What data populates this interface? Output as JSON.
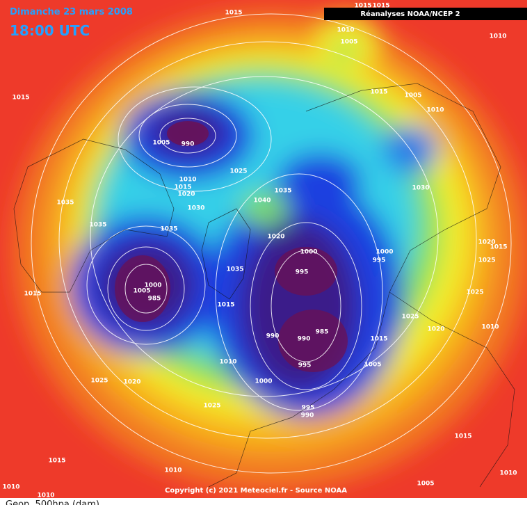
{
  "header": {
    "date": "Dimanche 23 mars 2008",
    "time": "18:00 UTC",
    "source_badge": "Réanalyses NOAA/NCEP 2"
  },
  "contour_labels": [
    1015,
    1015,
    1015,
    1010,
    1005,
    1010,
    1015,
    1015,
    1005,
    1010,
    1005,
    990,
    1025,
    1010,
    1015,
    1020,
    1035,
    1030,
    1040,
    1030,
    1035,
    1035,
    1035,
    1020,
    1000,
    1000,
    995,
    1020,
    1015,
    1025,
    995,
    1035,
    1000,
    1005,
    985,
    1015,
    1025,
    1015,
    1025,
    1020,
    1010,
    990,
    990,
    985,
    1015,
    1010,
    1005,
    995,
    1025,
    1020,
    1000,
    1025,
    995,
    990,
    1015,
    1015,
    1010,
    1010,
    1005,
    1010,
    1010
  ],
  "footer": {
    "copyright": "Copyright (c) 2021 Meteociel.fr - Source NOAA",
    "field": "Geop. 500hpa (dam)"
  }
}
